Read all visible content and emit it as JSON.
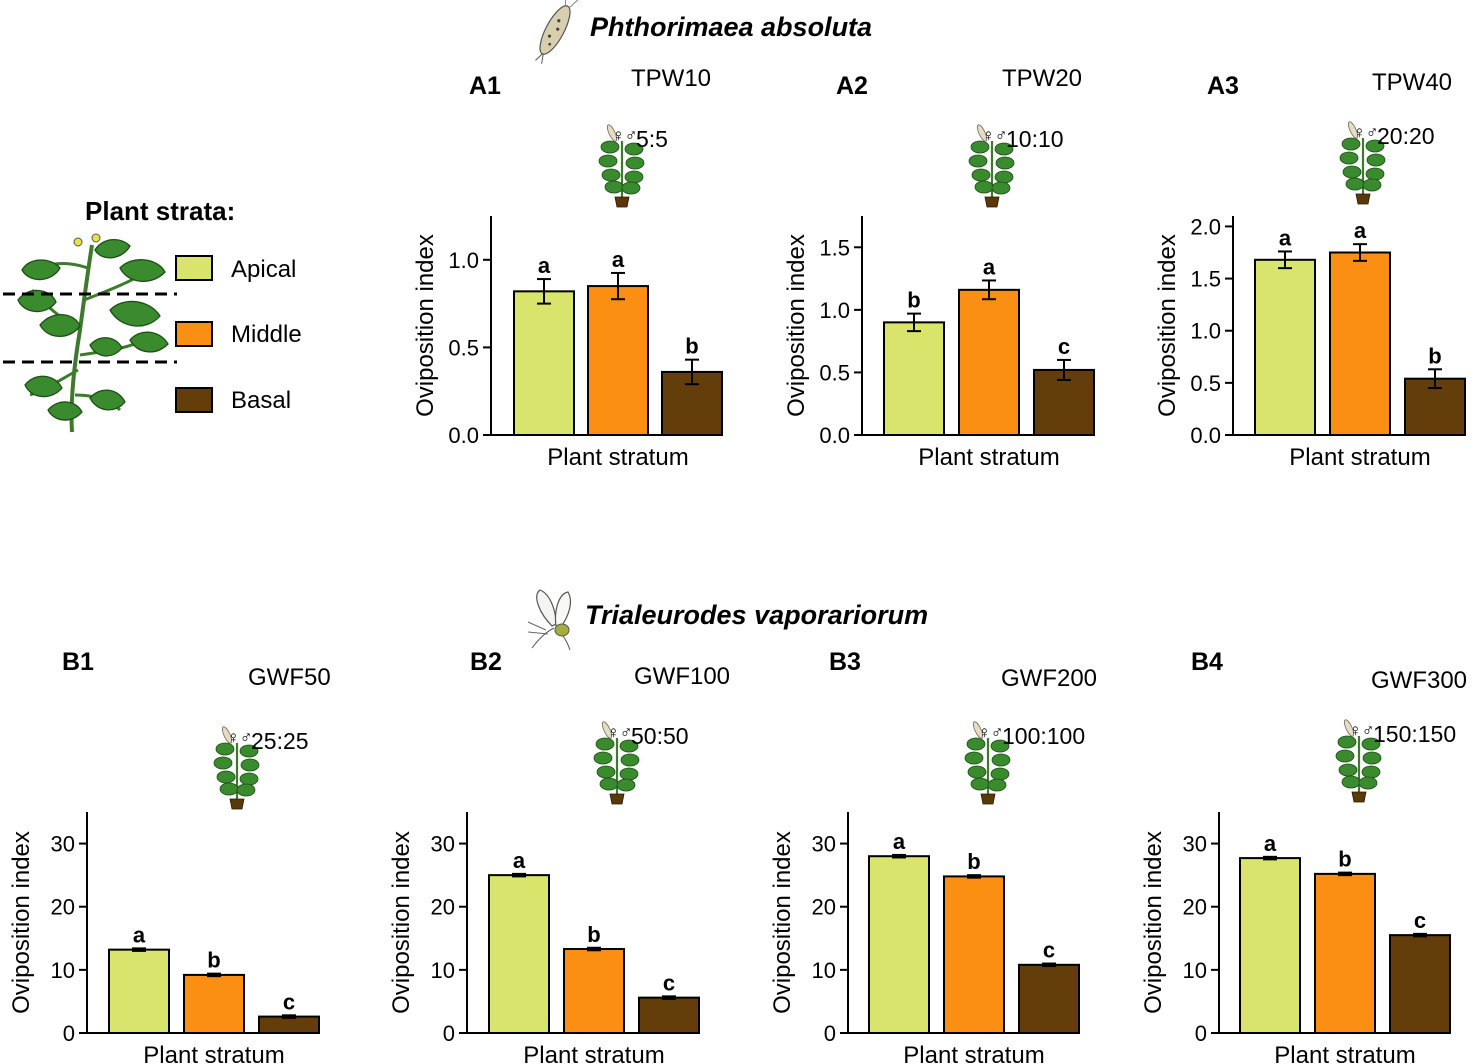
{
  "section_a": {
    "species": "Phthorimaea absoluta"
  },
  "section_b": {
    "species": "Trialeurodes vaporariorum"
  },
  "legend": {
    "title": "Plant strata:",
    "items": [
      {
        "label": "Apical",
        "color": "#d9e46c"
      },
      {
        "label": "Middle",
        "color": "#fb8f14"
      },
      {
        "label": "Basal",
        "color": "#633e0a"
      }
    ]
  },
  "sex_symbols": "♀♂",
  "chart_data": [
    {
      "type": "bar",
      "panel": "A1",
      "title": "TPW10",
      "sex_ratio": "5:5",
      "xlabel": "Plant stratum",
      "ylabel": "Oviposition index",
      "ylim": [
        0,
        1.25
      ],
      "yticks": [
        "0.0",
        "0.5",
        "1.0"
      ],
      "ytick_values": [
        0,
        0.5,
        1.0
      ],
      "categories": [
        "Apical",
        "Middle",
        "Basal"
      ],
      "values": [
        0.82,
        0.85,
        0.36
      ],
      "errors": [
        0.07,
        0.075,
        0.07
      ],
      "letters": [
        "a",
        "a",
        "b"
      ]
    },
    {
      "type": "bar",
      "panel": "A2",
      "title": "TPW20",
      "sex_ratio": "10:10",
      "xlabel": "Plant stratum",
      "ylabel": "Oviposition index",
      "ylim": [
        0,
        1.75
      ],
      "yticks": [
        "0.0",
        "0.5",
        "1.0",
        "1.5"
      ],
      "ytick_values": [
        0,
        0.5,
        1.0,
        1.5
      ],
      "categories": [
        "Apical",
        "Middle",
        "Basal"
      ],
      "values": [
        0.9,
        1.16,
        0.52
      ],
      "errors": [
        0.07,
        0.075,
        0.08
      ],
      "letters": [
        "b",
        "a",
        "c"
      ]
    },
    {
      "type": "bar",
      "panel": "A3",
      "title": "TPW40",
      "sex_ratio": "20:20",
      "xlabel": "Plant stratum",
      "ylabel": "Oviposition index",
      "ylim": [
        0,
        2.1
      ],
      "yticks": [
        "0.0",
        "0.5",
        "1.0",
        "1.5",
        "2.0"
      ],
      "ytick_values": [
        0,
        0.5,
        1.0,
        1.5,
        2.0
      ],
      "categories": [
        "Apical",
        "Middle",
        "Basal"
      ],
      "values": [
        1.68,
        1.75,
        0.54
      ],
      "errors": [
        0.08,
        0.08,
        0.09
      ],
      "letters": [
        "a",
        "a",
        "b"
      ]
    },
    {
      "type": "bar",
      "panel": "B1",
      "title": "GWF50",
      "sex_ratio": "25:25",
      "xlabel": "Plant stratum",
      "ylabel": "Oviposition index",
      "ylim": [
        0,
        35
      ],
      "yticks": [
        "0",
        "10",
        "20",
        "30"
      ],
      "ytick_values": [
        0,
        10,
        20,
        30
      ],
      "categories": [
        "Apical",
        "Middle",
        "Basal"
      ],
      "values": [
        13.2,
        9.2,
        2.6
      ],
      "errors": [
        0.2,
        0.2,
        0.2
      ],
      "letters": [
        "a",
        "b",
        "c"
      ]
    },
    {
      "type": "bar",
      "panel": "B2",
      "title": "GWF100",
      "sex_ratio": "50:50",
      "xlabel": "Plant stratum",
      "ylabel": "Oviposition index",
      "ylim": [
        0,
        35
      ],
      "yticks": [
        "0",
        "10",
        "20",
        "30"
      ],
      "ytick_values": [
        0,
        10,
        20,
        30
      ],
      "categories": [
        "Apical",
        "Middle",
        "Basal"
      ],
      "values": [
        25.0,
        13.3,
        5.6
      ],
      "errors": [
        0.2,
        0.2,
        0.2
      ],
      "letters": [
        "a",
        "b",
        "c"
      ]
    },
    {
      "type": "bar",
      "panel": "B3",
      "title": "GWF200",
      "sex_ratio": "100:100",
      "xlabel": "Plant stratum",
      "ylabel": "Oviposition index",
      "ylim": [
        0,
        35
      ],
      "yticks": [
        "0",
        "10",
        "20",
        "30"
      ],
      "ytick_values": [
        0,
        10,
        20,
        30
      ],
      "categories": [
        "Apical",
        "Middle",
        "Basal"
      ],
      "values": [
        28.0,
        24.8,
        10.8
      ],
      "errors": [
        0.2,
        0.2,
        0.2
      ],
      "letters": [
        "a",
        "b",
        "c"
      ]
    },
    {
      "type": "bar",
      "panel": "B4",
      "title": "GWF300",
      "sex_ratio": "150:150",
      "xlabel": "Plant stratum",
      "ylabel": "Oviposition index",
      "ylim": [
        0,
        35
      ],
      "yticks": [
        "0",
        "10",
        "20",
        "30"
      ],
      "ytick_values": [
        0,
        10,
        20,
        30
      ],
      "categories": [
        "Apical",
        "Middle",
        "Basal"
      ],
      "values": [
        27.7,
        25.2,
        15.5
      ],
      "errors": [
        0.2,
        0.2,
        0.2
      ],
      "letters": [
        "a",
        "b",
        "c"
      ]
    }
  ]
}
